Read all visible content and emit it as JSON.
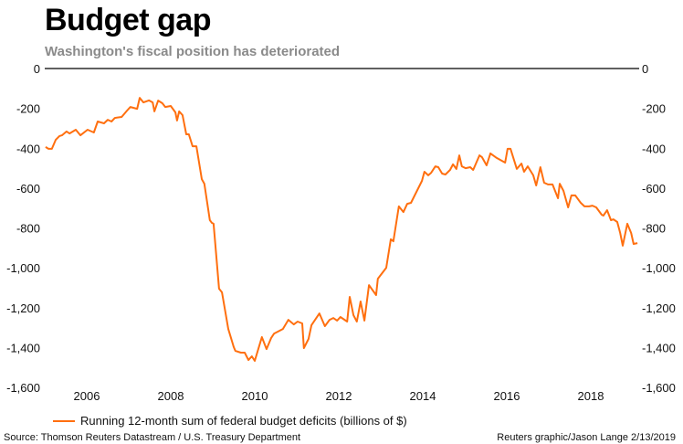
{
  "chart_data": {
    "type": "line",
    "title": "Budget gap",
    "subtitle": "Washington's fiscal position has deteriorated",
    "xlabel": "",
    "ylabel": "",
    "xlim": [
      2005,
      2019.2
    ],
    "ylim": [
      -1600,
      0
    ],
    "grid": false,
    "x_ticks": [
      2006,
      2008,
      2010,
      2012,
      2014,
      2016,
      2018
    ],
    "x_tick_labels": [
      "2006",
      "2008",
      "2010",
      "2012",
      "2014",
      "2016",
      "2018"
    ],
    "y_ticks": [
      0,
      -200,
      -400,
      -600,
      -800,
      -1000,
      -1200,
      -1400,
      -1600
    ],
    "y_tick_labels": [
      "0",
      "-200",
      "-400",
      "-600",
      "-800",
      "-1,000",
      "-1,200",
      "-1,400",
      "-1,600"
    ],
    "legend_placement": "bottom-left",
    "series": [
      {
        "name": "Running 12-month sum of federal budget deficits (billions of $)",
        "color": "#ff6f0f",
        "x": [
          2005.02,
          2005.09,
          2005.17,
          2005.26,
          2005.35,
          2005.41,
          2005.52,
          2005.59,
          2005.74,
          2005.85,
          2006.02,
          2006.17,
          2006.26,
          2006.41,
          2006.5,
          2006.59,
          2006.67,
          2006.83,
          2006.96,
          2007.04,
          2007.2,
          2007.26,
          2007.35,
          2007.48,
          2007.57,
          2007.61,
          2007.7,
          2007.8,
          2007.87,
          2008.0,
          2008.11,
          2008.15,
          2008.2,
          2008.28,
          2008.37,
          2008.43,
          2008.52,
          2008.61,
          2008.74,
          2008.8,
          2008.93,
          2008.98,
          2009.02,
          2009.15,
          2009.22,
          2009.37,
          2009.5,
          2009.54,
          2009.67,
          2009.76,
          2009.85,
          2009.93,
          2010.0,
          2010.17,
          2010.28,
          2010.39,
          2010.46,
          2010.67,
          2010.8,
          2010.93,
          2011.02,
          2011.13,
          2011.17,
          2011.28,
          2011.35,
          2011.54,
          2011.67,
          2011.78,
          2011.87,
          2011.96,
          2012.04,
          2012.2,
          2012.26,
          2012.35,
          2012.43,
          2012.52,
          2012.61,
          2012.72,
          2012.89,
          2012.93,
          2013.13,
          2013.24,
          2013.3,
          2013.43,
          2013.54,
          2013.63,
          2013.72,
          2013.85,
          2013.98,
          2014.04,
          2014.13,
          2014.2,
          2014.3,
          2014.37,
          2014.46,
          2014.54,
          2014.65,
          2014.72,
          2014.8,
          2014.87,
          2014.93,
          2015.02,
          2015.13,
          2015.2,
          2015.35,
          2015.41,
          2015.52,
          2015.61,
          2015.76,
          2015.96,
          2016.02,
          2016.09,
          2016.24,
          2016.35,
          2016.41,
          2016.5,
          2016.63,
          2016.7,
          2016.8,
          2016.89,
          2016.98,
          2017.09,
          2017.22,
          2017.26,
          2017.35,
          2017.46,
          2017.54,
          2017.63,
          2017.76,
          2017.85,
          2017.96,
          2018.04,
          2018.13,
          2018.26,
          2018.3,
          2018.39,
          2018.48,
          2018.54,
          2018.63,
          2018.7,
          2018.76,
          2018.87,
          2018.96,
          2019.02,
          2019.11
        ],
        "y": [
          -394,
          -403,
          -403,
          -358,
          -339,
          -335,
          -316,
          -326,
          -307,
          -335,
          -307,
          -321,
          -266,
          -275,
          -257,
          -266,
          -248,
          -243,
          -211,
          -193,
          -202,
          -147,
          -170,
          -160,
          -170,
          -215,
          -161,
          -174,
          -193,
          -188,
          -220,
          -261,
          -215,
          -234,
          -330,
          -330,
          -390,
          -390,
          -555,
          -578,
          -761,
          -775,
          -779,
          -1105,
          -1123,
          -1307,
          -1398,
          -1417,
          -1426,
          -1426,
          -1463,
          -1444,
          -1467,
          -1348,
          -1408,
          -1353,
          -1330,
          -1307,
          -1261,
          -1284,
          -1270,
          -1279,
          -1403,
          -1357,
          -1288,
          -1229,
          -1293,
          -1261,
          -1252,
          -1265,
          -1247,
          -1270,
          -1146,
          -1238,
          -1270,
          -1169,
          -1265,
          -1087,
          -1137,
          -1055,
          -1000,
          -857,
          -867,
          -692,
          -720,
          -679,
          -674,
          -619,
          -564,
          -518,
          -536,
          -523,
          -491,
          -495,
          -527,
          -532,
          -509,
          -481,
          -504,
          -436,
          -491,
          -500,
          -495,
          -509,
          -436,
          -445,
          -486,
          -426,
          -449,
          -472,
          -403,
          -403,
          -504,
          -477,
          -518,
          -491,
          -536,
          -587,
          -495,
          -573,
          -582,
          -582,
          -651,
          -578,
          -614,
          -697,
          -637,
          -637,
          -674,
          -692,
          -692,
          -688,
          -697,
          -734,
          -738,
          -711,
          -761,
          -757,
          -770,
          -825,
          -889,
          -779,
          -825,
          -880,
          -876
        ]
      }
    ]
  },
  "footer": {
    "source": "Source: Thomson Reuters Datastream / U.S. Treasury Department",
    "credit": "Reuters graphic/Jason Lange 2/13/2019"
  }
}
